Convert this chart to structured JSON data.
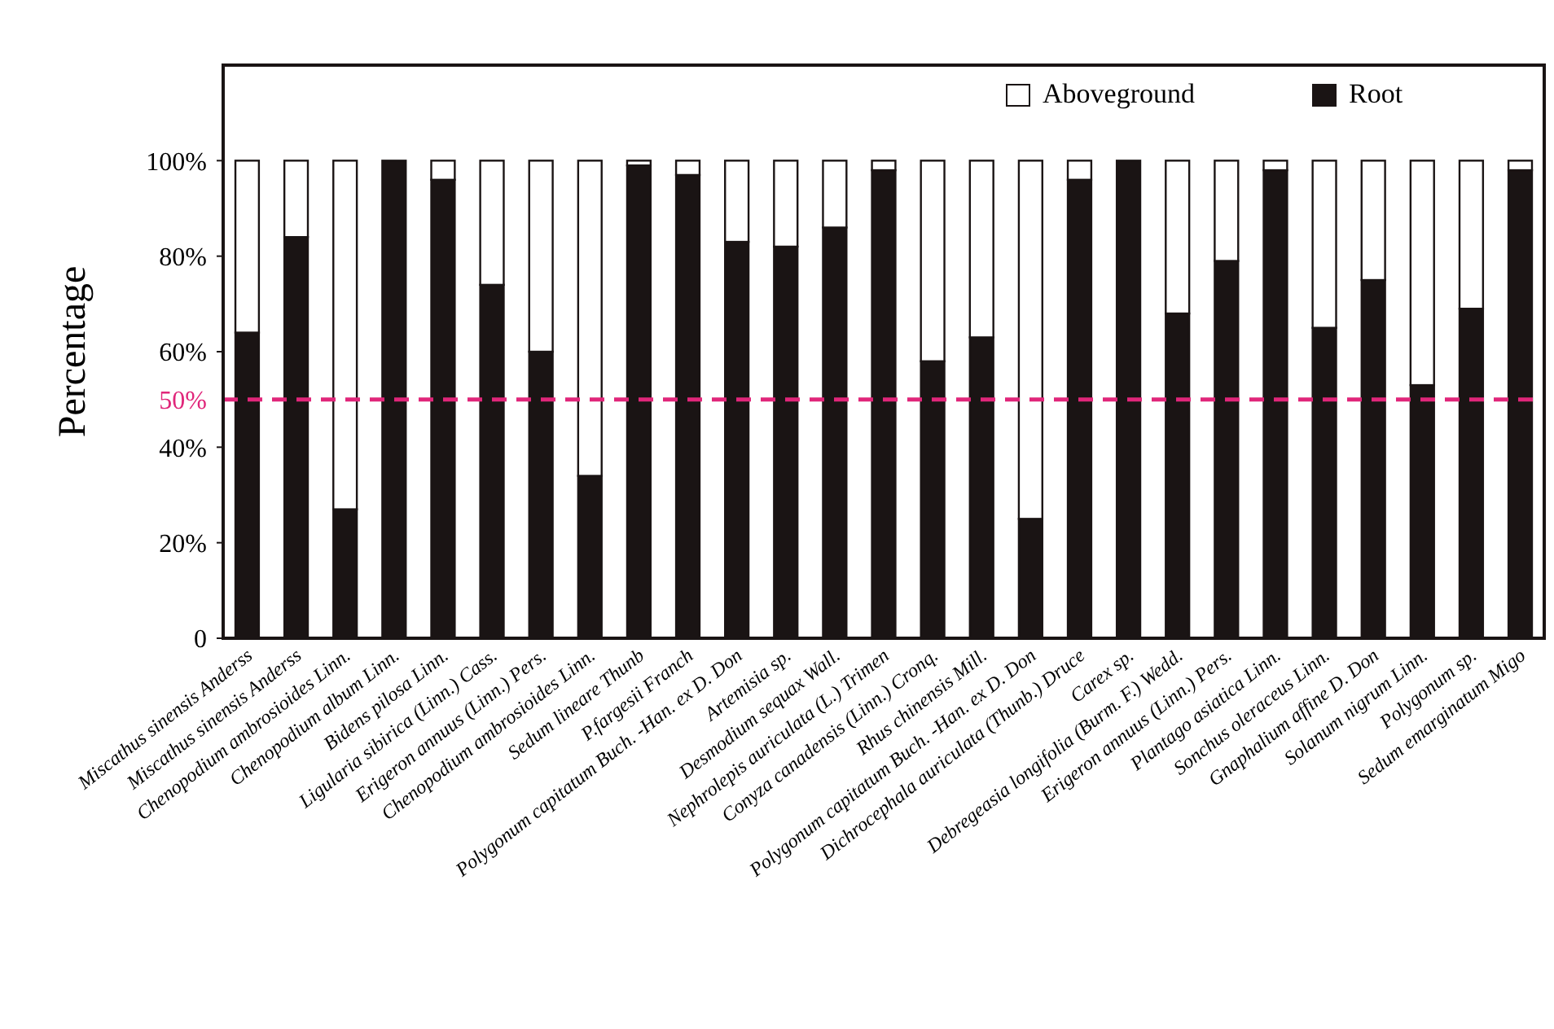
{
  "chart_data": {
    "type": "bar",
    "ylabel": "Percentage",
    "stacked": true,
    "legend": "top right",
    "ylim": [
      0,
      120
    ],
    "yticks": [
      {
        "value": 0,
        "label": "0"
      },
      {
        "value": 20,
        "label": "20%"
      },
      {
        "value": 40,
        "label": "40%"
      },
      {
        "value": 60,
        "label": "60%"
      },
      {
        "value": 80,
        "label": "80%"
      },
      {
        "value": 100,
        "label": "100%"
      }
    ],
    "categories": [
      "Miscathus sinensis Anderss",
      "Miscathus sinensis Anderss",
      "Chenopodium ambrosioides Linn.",
      "Chenopodium album Linn.",
      "Bidens pilosa Linn.",
      "Ligularia sibirica (Linn.) Cass.",
      "Erigeron annuus (Linn.) Pers.",
      "Chenopodium ambrosioides Linn.",
      "Sedum lineare Thunb",
      "P.fargesii Franch",
      "Polygonum capitatum Buch. -Han. ex D. Don",
      "Artemisia sp.",
      "Desmodium sequax Wall.",
      "Nephrolepis auriculata (L.) Trimen",
      "Conyza canadensis (Linn.) Cronq.",
      "Rhus chinensis Mill.",
      "Polygonum capitatum Buch. -Han. ex D. Don",
      "Dichrocephala auriculata (Thunb.) Druce",
      "Carex sp.",
      "Debregeasia longifolia (Burm. F.) Wedd.",
      "Erigeron annuus (Linn.) Pers.",
      "Plantago asiatica Linn.",
      "Sonchus oleraceus Linn.",
      "Gnaphalium affine D. Don",
      "Solanum nigrum Linn.",
      "Polygonum sp.",
      "Sedum emarginatum Migo"
    ],
    "series": [
      {
        "name": "Root",
        "color": "#1a1414",
        "values": [
          64,
          84,
          27,
          100,
          96,
          74,
          60,
          34,
          99,
          97,
          83,
          82,
          86,
          98,
          58,
          63,
          25,
          96,
          100,
          68,
          79,
          98,
          65,
          75,
          53,
          69,
          98
        ]
      },
      {
        "name": "Aboveground",
        "color": "#ffffff",
        "values": [
          36,
          16,
          73,
          0,
          4,
          26,
          40,
          66,
          1,
          3,
          17,
          18,
          14,
          2,
          42,
          37,
          75,
          4,
          0,
          32,
          21,
          2,
          35,
          25,
          47,
          31,
          2
        ]
      }
    ],
    "ref_lines": [
      {
        "axis": "y",
        "value": 50,
        "label": "50%",
        "color": "#e0267a",
        "line_style": "dashed"
      }
    ]
  }
}
